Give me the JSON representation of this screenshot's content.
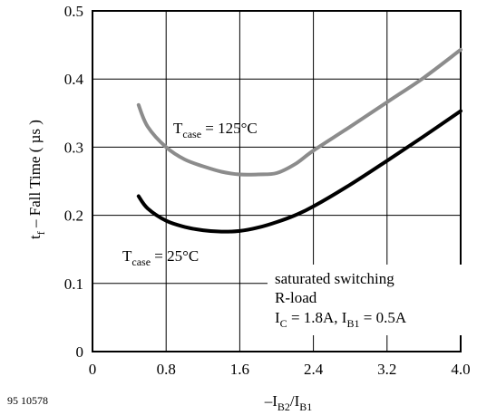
{
  "chart_data": {
    "type": "line",
    "xlabel": {
      "prefix": "–I",
      "sub1": "B2",
      "slash": "/I",
      "sub2": "B1"
    },
    "ylabel": {
      "main": "t",
      "sub": "f",
      "rest": " – Fall Time ( µs )"
    },
    "x_ticks": [
      "0",
      "0.8",
      "1.6",
      "2.4",
      "3.2",
      "4.0"
    ],
    "y_ticks": [
      "0",
      "0.1",
      "0.2",
      "0.3",
      "0.4",
      "0.5"
    ],
    "xlim": [
      0,
      4.0
    ],
    "ylim": [
      0,
      0.5
    ],
    "grid": true,
    "series": [
      {
        "label_main": "T",
        "label_sub": "case",
        "label_rest": " = 125°C",
        "color": "#8c8c8c",
        "x": [
          0.5,
          0.6,
          0.8,
          1.0,
          1.2,
          1.4,
          1.6,
          1.8,
          2.0,
          2.2,
          2.4,
          2.8,
          3.2,
          3.6,
          4.0
        ],
        "y": [
          0.362,
          0.33,
          0.3,
          0.282,
          0.272,
          0.264,
          0.26,
          0.26,
          0.262,
          0.275,
          0.295,
          0.33,
          0.366,
          0.402,
          0.443
        ]
      },
      {
        "label_main": "T",
        "label_sub": "case",
        "label_rest": " = 25°C",
        "color": "#000000",
        "x": [
          0.5,
          0.6,
          0.8,
          1.0,
          1.2,
          1.4,
          1.6,
          1.8,
          2.0,
          2.2,
          2.4,
          2.8,
          3.2,
          3.6,
          4.0
        ],
        "y": [
          0.228,
          0.21,
          0.192,
          0.183,
          0.178,
          0.176,
          0.177,
          0.182,
          0.19,
          0.2,
          0.213,
          0.245,
          0.28,
          0.316,
          0.353
        ]
      }
    ],
    "annotation": {
      "line1": "saturated switching",
      "line2": "R-load",
      "line3": {
        "a": "I",
        "a_sub": "C",
        "b": " = 1.8A, I",
        "b_sub": "B1",
        "c": " = 0.5A"
      }
    },
    "figure_id": "95 10578"
  }
}
